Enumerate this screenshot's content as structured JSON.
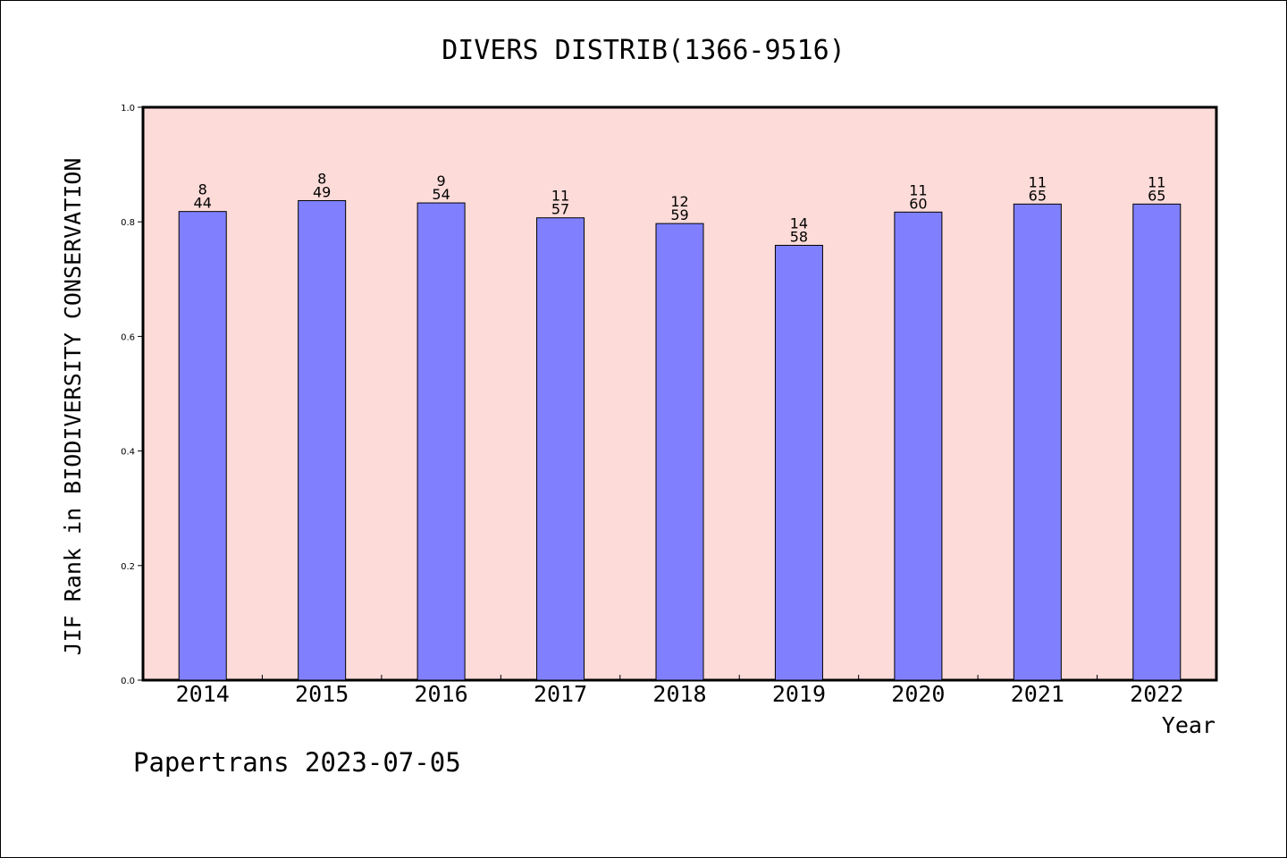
{
  "chart_data": {
    "type": "bar",
    "title": "DIVERS DISTRIB(1366-9516)",
    "xlabel": "Year",
    "ylabel": "JIF Rank in BIODIVERSITY CONSERVATION",
    "categories": [
      "2014",
      "2015",
      "2016",
      "2017",
      "2018",
      "2019",
      "2020",
      "2021",
      "2022"
    ],
    "values": [
      0.818,
      0.837,
      0.833,
      0.807,
      0.797,
      0.759,
      0.817,
      0.831,
      0.831
    ],
    "ranks": [
      "8",
      "8",
      "9",
      "11",
      "12",
      "14",
      "11",
      "11",
      "11"
    ],
    "totals": [
      "44",
      "49",
      "54",
      "57",
      "59",
      "58",
      "60",
      "65",
      "65"
    ],
    "ylim": [
      0.0,
      1.0
    ],
    "yticks": [
      "0.0",
      "0.2",
      "0.4",
      "0.6",
      "0.8",
      "1.0"
    ],
    "grid": false,
    "colors": {
      "plot_background": "#fddbd8",
      "bar": "#8080ff",
      "bar_edge": "#000000"
    }
  },
  "footer": {
    "credit": "Papertrans 2023-07-05"
  }
}
